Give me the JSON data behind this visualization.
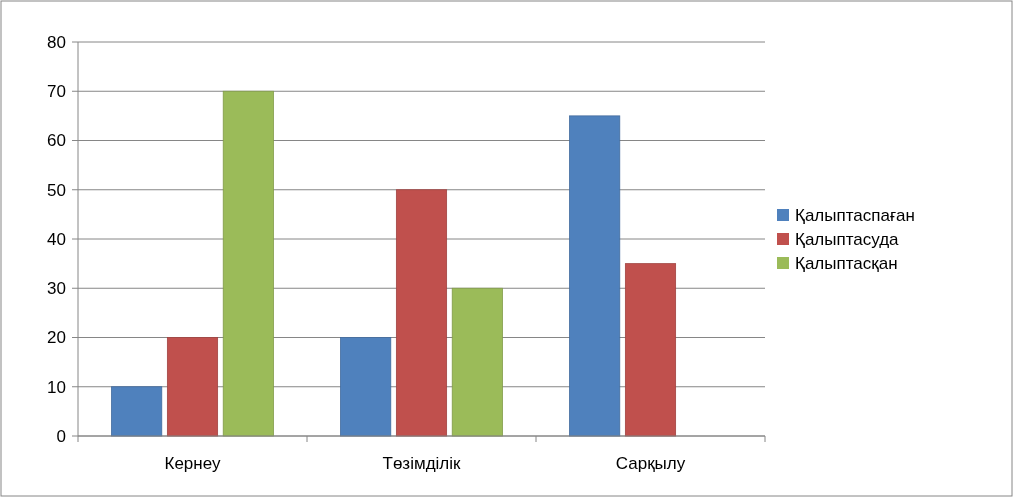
{
  "chart_data": {
    "type": "bar",
    "categories": [
      "Кернеу",
      "Төзімділік",
      "Сарқылу"
    ],
    "series": [
      {
        "name": "Қалыптаспаған",
        "color": "#4f81bd",
        "values": [
          10,
          20,
          65
        ]
      },
      {
        "name": "Қалыптасуда",
        "color": "#c0504d",
        "values": [
          20,
          50,
          35
        ]
      },
      {
        "name": "Қалыптасқан",
        "color": "#9bbb59",
        "values": [
          70,
          30,
          null
        ]
      }
    ],
    "ylim": [
      0,
      80
    ],
    "yticks": [
      0,
      10,
      20,
      30,
      40,
      50,
      60,
      70,
      80
    ],
    "grid": "y",
    "legend": "right"
  }
}
